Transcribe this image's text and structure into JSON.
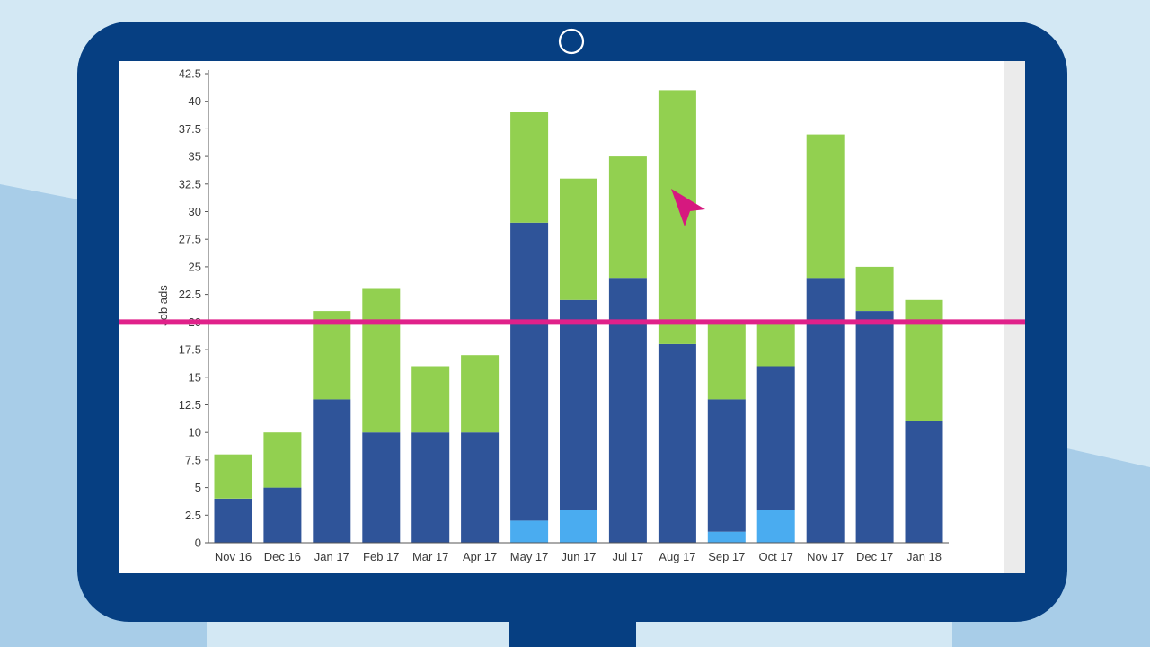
{
  "device": {
    "frame_color": "#063f82",
    "camera_icon": "camera-ring-icon",
    "background_light": "#d3e8f4",
    "background_mid": "#a8cde8",
    "cursor_icon": "pointer-arrow-icon",
    "cursor_color": "#d6187f"
  },
  "chart_data": {
    "type": "bar",
    "stacked": true,
    "ylabel": "Job ads",
    "ylim": [
      0,
      42.5
    ],
    "ytick_step": 2.5,
    "yticks": [
      "0",
      "2.5",
      "5",
      "7.5",
      "10",
      "12.5",
      "15",
      "17.5",
      "20",
      "22.5",
      "25",
      "27.5",
      "30",
      "32.5",
      "35",
      "37.5",
      "40",
      "42.5"
    ],
    "categories": [
      "Nov 16",
      "Dec 16",
      "Jan 17",
      "Feb 17",
      "Mar 17",
      "Apr 17",
      "May 17",
      "Jun 17",
      "Jul 17",
      "Aug 17",
      "Sep 17",
      "Oct 17",
      "Nov 17",
      "Dec 17",
      "Jan 18"
    ],
    "series": [
      {
        "color": "#4aacf0",
        "values": [
          0,
          0,
          0,
          0,
          0,
          0,
          2,
          3,
          0,
          0,
          1,
          3,
          0,
          0,
          0
        ]
      },
      {
        "color": "#2f5499",
        "values": [
          4,
          5,
          13,
          10,
          10,
          10,
          27,
          19,
          24,
          18,
          12,
          13,
          24,
          21,
          11
        ]
      },
      {
        "color": "#92d050",
        "values": [
          4,
          5,
          8,
          13,
          6,
          7,
          10,
          11,
          11,
          23,
          7,
          4,
          13,
          4,
          11
        ]
      }
    ],
    "reference_line": {
      "value": 20,
      "color": "#e0218a"
    },
    "grid": false,
    "legend": "none"
  }
}
